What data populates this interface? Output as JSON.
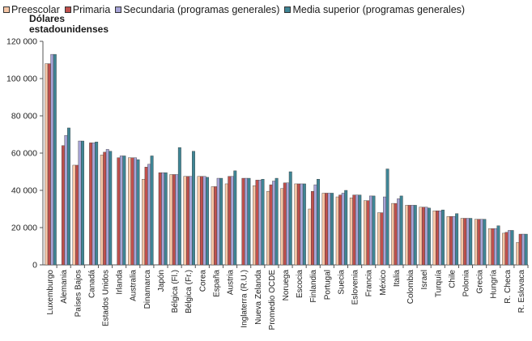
{
  "chart_data": {
    "type": "bar",
    "ylabel": "Dólares estadounidenses",
    "ylim": [
      0,
      120000
    ],
    "yticks": [
      0,
      20000,
      40000,
      60000,
      80000,
      100000,
      120000
    ],
    "ytick_labels": [
      "0",
      "20 000",
      "40 000",
      "60 000",
      "80 000",
      "100 000",
      "120 000"
    ],
    "grid": false,
    "legend_position": "top",
    "categories": [
      "Luxemburgo",
      "Alemania",
      "Países Bajos",
      "Canadá",
      "Estados Unidos",
      "Irlanda",
      "Australia",
      "Dinamarca",
      "Japón",
      "Bélgica (Fl.)",
      "Bélgica (Fr.)",
      "Corea",
      "España",
      "Austria",
      "Inglaterra (R.U.)",
      "Nueva Zelanda",
      "Promedio OCDE",
      "Noruega",
      "Escocia",
      "Finlandia",
      "Portugal",
      "Suecia",
      "Eslovenia",
      "Francia",
      "México",
      "Italia",
      "Colombia",
      "Israel",
      "Turquía",
      "Chile",
      "Polonia",
      "Grecia",
      "Hungría",
      "R. Checa",
      "R. Eslovaca"
    ],
    "series": [
      {
        "name": "Preescolar",
        "color": "#f6c6a6",
        "values": [
          108000,
          null,
          53500,
          null,
          59000,
          null,
          57500,
          46000,
          null,
          48500,
          47500,
          47500,
          42000,
          43500,
          null,
          42500,
          39500,
          41000,
          43500,
          30000,
          38500,
          36500,
          36000,
          34500,
          28000,
          33000,
          32000,
          31000,
          29000,
          26000,
          25000,
          24500,
          19500,
          17000,
          12000
        ]
      },
      {
        "name": "Primaria",
        "color": "#c0504d",
        "values": [
          108000,
          64000,
          53500,
          65500,
          60500,
          57500,
          57500,
          52500,
          49500,
          48500,
          47500,
          47500,
          42000,
          47500,
          46500,
          45500,
          43000,
          44000,
          43500,
          39500,
          38500,
          37500,
          37500,
          34500,
          28000,
          33000,
          32000,
          31000,
          29000,
          26000,
          25000,
          24500,
          19500,
          17500,
          16500
        ]
      },
      {
        "name": "Secundaria (programas generales)",
        "color": "#a6a3d6",
        "values": [
          113000,
          69500,
          66500,
          65500,
          62000,
          58500,
          57500,
          54000,
          49500,
          48500,
          47500,
          47500,
          46500,
          47500,
          46500,
          45500,
          45000,
          44000,
          43500,
          43000,
          38500,
          38500,
          37500,
          37000,
          36500,
          35500,
          32000,
          31000,
          29000,
          26000,
          25000,
          24500,
          19500,
          18500,
          16500
        ]
      },
      {
        "name": "Media superior (programas generales)",
        "color": "#3f8595",
        "values": [
          113000,
          73500,
          66500,
          66000,
          61000,
          58500,
          56500,
          58500,
          49500,
          63000,
          61000,
          47000,
          46500,
          50500,
          46500,
          46000,
          46500,
          50000,
          43500,
          46000,
          38500,
          40000,
          37500,
          37000,
          51500,
          37000,
          32000,
          30500,
          29500,
          27500,
          25000,
          24500,
          21000,
          18500,
          16500
        ]
      }
    ]
  }
}
